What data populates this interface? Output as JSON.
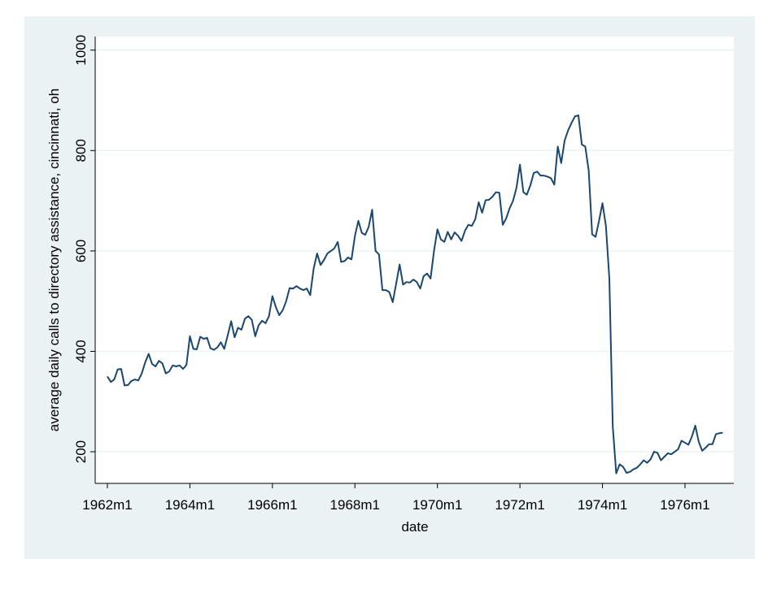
{
  "chart_data": {
    "type": "line",
    "y_label": "average daily calls to directory assistance, cincinnati, oh",
    "x_label": "date",
    "color": "#1a476f",
    "grid": true,
    "ylim": [
      137,
      1027
    ],
    "yticks": [
      200,
      400,
      600,
      800,
      1000
    ],
    "categories": [
      "1962m1",
      null,
      null,
      null,
      null,
      null,
      null,
      null,
      null,
      null,
      null,
      null,
      null,
      null,
      null,
      null,
      null,
      null,
      null,
      null,
      null,
      null,
      null,
      null,
      "1964m1",
      null,
      null,
      null,
      null,
      null,
      null,
      null,
      null,
      null,
      null,
      null,
      null,
      null,
      null,
      null,
      null,
      null,
      null,
      null,
      null,
      null,
      null,
      null,
      "1966m1",
      null,
      null,
      null,
      null,
      null,
      null,
      null,
      null,
      null,
      null,
      null,
      null,
      null,
      null,
      null,
      null,
      null,
      null,
      null,
      null,
      null,
      null,
      null,
      "1968m1",
      null,
      null,
      null,
      null,
      null,
      null,
      null,
      null,
      null,
      null,
      null,
      null,
      null,
      null,
      null,
      null,
      null,
      null,
      null,
      null,
      null,
      null,
      null,
      "1970m1",
      null,
      null,
      null,
      null,
      null,
      null,
      null,
      null,
      null,
      null,
      null,
      null,
      null,
      null,
      null,
      null,
      null,
      null,
      null,
      null,
      null,
      null,
      null,
      "1972m1",
      null,
      null,
      null,
      null,
      null,
      null,
      null,
      null,
      null,
      null,
      null,
      null,
      null,
      null,
      null,
      null,
      null,
      null,
      null,
      null,
      null,
      null,
      null,
      "1974m1",
      null,
      null,
      null,
      null,
      null,
      null,
      null,
      null,
      null,
      null,
      null,
      null,
      null,
      null,
      null,
      null,
      null,
      null,
      null,
      null,
      null,
      null,
      null,
      "1976m1",
      null,
      null,
      null,
      null,
      null,
      null,
      null,
      null,
      null,
      null,
      null
    ],
    "values": [
      350,
      339,
      344,
      364,
      365,
      332,
      333,
      341,
      344,
      342,
      356,
      378,
      395,
      375,
      370,
      381,
      376,
      356,
      360,
      372,
      370,
      372,
      365,
      373,
      430,
      405,
      404,
      429,
      425,
      427,
      406,
      403,
      408,
      418,
      405,
      432,
      460,
      428,
      447,
      443,
      465,
      470,
      463,
      430,
      452,
      461,
      456,
      470,
      510,
      488,
      472,
      482,
      500,
      526,
      525,
      530,
      525,
      522,
      525,
      512,
      565,
      595,
      572,
      582,
      595,
      600,
      605,
      618,
      578,
      580,
      587,
      583,
      630,
      660,
      636,
      632,
      648,
      682,
      600,
      593,
      522,
      522,
      518,
      498,
      535,
      573,
      533,
      538,
      537,
      543,
      538,
      525,
      550,
      555,
      545,
      600,
      643,
      623,
      618,
      638,
      623,
      637,
      630,
      620,
      640,
      652,
      650,
      663,
      697,
      676,
      701,
      702,
      708,
      717,
      716,
      652,
      665,
      685,
      700,
      726,
      772,
      717,
      712,
      730,
      755,
      758,
      750,
      750,
      748,
      745,
      732,
      808,
      775,
      820,
      840,
      855,
      868,
      870,
      812,
      808,
      760,
      633,
      628,
      660,
      695,
      650,
      545,
      250,
      157,
      175,
      170,
      158,
      160,
      165,
      168,
      175,
      183,
      178,
      185,
      200,
      198,
      183,
      190,
      197,
      195,
      200,
      205,
      222,
      218,
      214,
      230,
      252,
      220,
      202,
      208,
      215,
      215,
      235,
      237,
      238
    ]
  }
}
